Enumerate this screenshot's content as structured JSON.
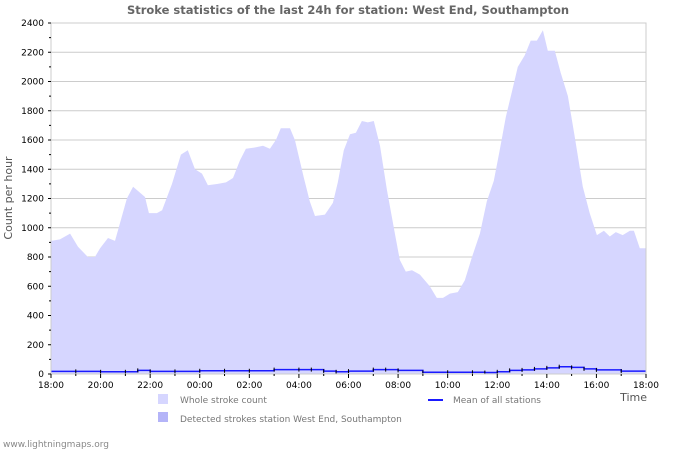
{
  "chart_data": {
    "type": "area",
    "title": "Stroke statistics of the last 24h for station: West End, Southampton",
    "xlabel": "Time",
    "ylabel": "Count per hour",
    "ylim": [
      0,
      2400
    ],
    "yticks": [
      0,
      200,
      400,
      600,
      800,
      1000,
      1200,
      1400,
      1600,
      1800,
      2000,
      2200,
      2400
    ],
    "xlim_hours": [
      0,
      24
    ],
    "xticks": [
      {
        "h": 0,
        "label": "18:00"
      },
      {
        "h": 2,
        "label": "20:00"
      },
      {
        "h": 4,
        "label": "22:00"
      },
      {
        "h": 6,
        "label": "00:00"
      },
      {
        "h": 8,
        "label": "02:00"
      },
      {
        "h": 10,
        "label": "04:00"
      },
      {
        "h": 12,
        "label": "06:00"
      },
      {
        "h": 14,
        "label": "08:00"
      },
      {
        "h": 16,
        "label": "10:00"
      },
      {
        "h": 18,
        "label": "12:00"
      },
      {
        "h": 20,
        "label": "14:00"
      },
      {
        "h": 22,
        "label": "16:00"
      },
      {
        "h": 24,
        "label": "18:00"
      }
    ],
    "grid": true,
    "colors": {
      "whole": "#d6d6ff",
      "detected": "#b4b4f8",
      "mean": "#1a1aff",
      "grid": "#cccccc",
      "title": "#666666"
    },
    "series": [
      {
        "name": "Whole stroke count",
        "type": "area",
        "x_hours": [
          0,
          0.36,
          0.77,
          1.09,
          1.49,
          1.77,
          1.98,
          2.3,
          2.58,
          3.06,
          3.31,
          3.79,
          3.95,
          4.27,
          4.48,
          4.88,
          5.24,
          5.52,
          5.81,
          6.09,
          6.33,
          6.73,
          7.06,
          7.34,
          7.62,
          7.86,
          8.27,
          8.55,
          8.83,
          9.07,
          9.27,
          9.64,
          9.84,
          10.2,
          10.44,
          10.65,
          11.05,
          11.37,
          11.57,
          11.81,
          12.06,
          12.3,
          12.54,
          12.78,
          13.02,
          13.27,
          13.55,
          13.87,
          14.07,
          14.31,
          14.56,
          14.88,
          15.28,
          15.56,
          15.81,
          16.09,
          16.41,
          16.69,
          16.98,
          17.3,
          17.58,
          17.86,
          18.1,
          18.35,
          18.59,
          18.83,
          19.11,
          19.35,
          19.6,
          19.84,
          20.04,
          20.32,
          20.56,
          20.85,
          21.13,
          21.45,
          21.73,
          22.02,
          22.3,
          22.54,
          22.78,
          23.06,
          23.35,
          23.51,
          23.75,
          24
        ],
        "values": [
          910,
          920,
          960,
          870,
          800,
          800,
          860,
          930,
          910,
          1200,
          1280,
          1210,
          1100,
          1100,
          1120,
          1300,
          1500,
          1530,
          1400,
          1370,
          1290,
          1300,
          1310,
          1340,
          1460,
          1540,
          1550,
          1560,
          1540,
          1600,
          1680,
          1680,
          1600,
          1340,
          1180,
          1080,
          1090,
          1170,
          1310,
          1530,
          1640,
          1650,
          1730,
          1720,
          1730,
          1560,
          1260,
          960,
          780,
          700,
          710,
          680,
          600,
          520,
          520,
          550,
          560,
          640,
          800,
          960,
          1180,
          1320,
          1530,
          1760,
          1930,
          2100,
          2180,
          2280,
          2280,
          2350,
          2210,
          2210,
          2060,
          1900,
          1620,
          1280,
          1100,
          950,
          980,
          940,
          970,
          950,
          980,
          980,
          860,
          860
        ]
      },
      {
        "name": "Detected strokes station West End, Southampton",
        "type": "area",
        "x_hours": [],
        "values": []
      },
      {
        "name": "Mean of all stations",
        "type": "step",
        "x_hours": [
          0,
          1,
          2,
          3,
          3.5,
          4,
          5,
          6,
          7,
          8,
          9,
          10,
          10.5,
          11,
          11.5,
          12,
          13,
          13.5,
          14,
          15,
          16,
          17,
          17.5,
          18,
          18.5,
          19,
          19.5,
          20,
          20.5,
          21,
          21.5,
          22,
          23,
          24
        ],
        "values": [
          18,
          18,
          15,
          15,
          25,
          18,
          18,
          22,
          22,
          22,
          30,
          30,
          30,
          20,
          15,
          20,
          30,
          30,
          25,
          12,
          12,
          12,
          10,
          15,
          25,
          28,
          35,
          42,
          50,
          45,
          35,
          28,
          20,
          20
        ]
      }
    ]
  },
  "footer": "www.lightningmaps.org"
}
